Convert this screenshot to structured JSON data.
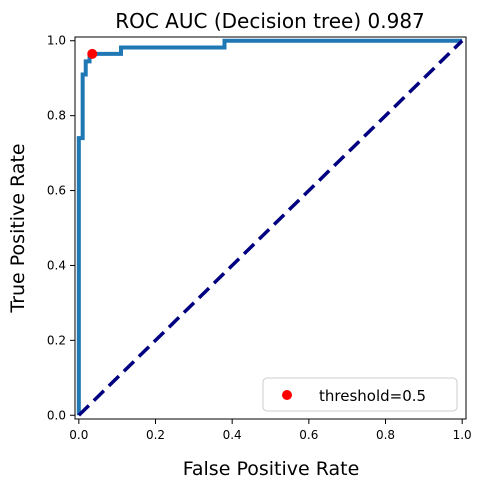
{
  "chart_data": {
    "type": "line",
    "title": "ROC AUC (Decision tree) 0.987",
    "xlabel": "False Positive Rate",
    "ylabel": "True Positive Rate",
    "xlim": [
      -0.01,
      1.01
    ],
    "ylim": [
      -0.01,
      1.01
    ],
    "xticks": [
      0.0,
      0.2,
      0.4,
      0.6,
      0.8,
      1.0
    ],
    "xtick_labels": [
      "0.0",
      "0.2",
      "0.4",
      "0.6",
      "0.8",
      "1.0"
    ],
    "yticks": [
      0.0,
      0.2,
      0.4,
      0.6,
      0.8,
      1.0
    ],
    "ytick_labels": [
      "0.0",
      "0.2",
      "0.4",
      "0.6",
      "0.8",
      "1.0"
    ],
    "grid": false,
    "legend": {
      "placement": "lower-right",
      "entries": [
        "threshold=0.5"
      ]
    },
    "series": [
      {
        "kind": "roc-curve",
        "color": "#1f77b4",
        "line_style": "solid",
        "x": [
          0.0,
          0.0,
          0.01,
          0.01,
          0.018,
          0.018,
          0.028,
          0.028,
          0.11,
          0.11,
          0.38,
          0.38,
          1.0
        ],
        "y": [
          0.0,
          0.74,
          0.74,
          0.91,
          0.91,
          0.945,
          0.945,
          0.965,
          0.965,
          0.982,
          0.982,
          1.0,
          1.0
        ]
      },
      {
        "kind": "chance-line",
        "color": "#000080",
        "line_style": "dashed",
        "x": [
          0.0,
          1.0
        ],
        "y": [
          0.0,
          1.0
        ]
      }
    ],
    "markers": [
      {
        "name": "threshold=0.5",
        "color": "#ff0000",
        "x": 0.035,
        "y": 0.965
      }
    ]
  }
}
